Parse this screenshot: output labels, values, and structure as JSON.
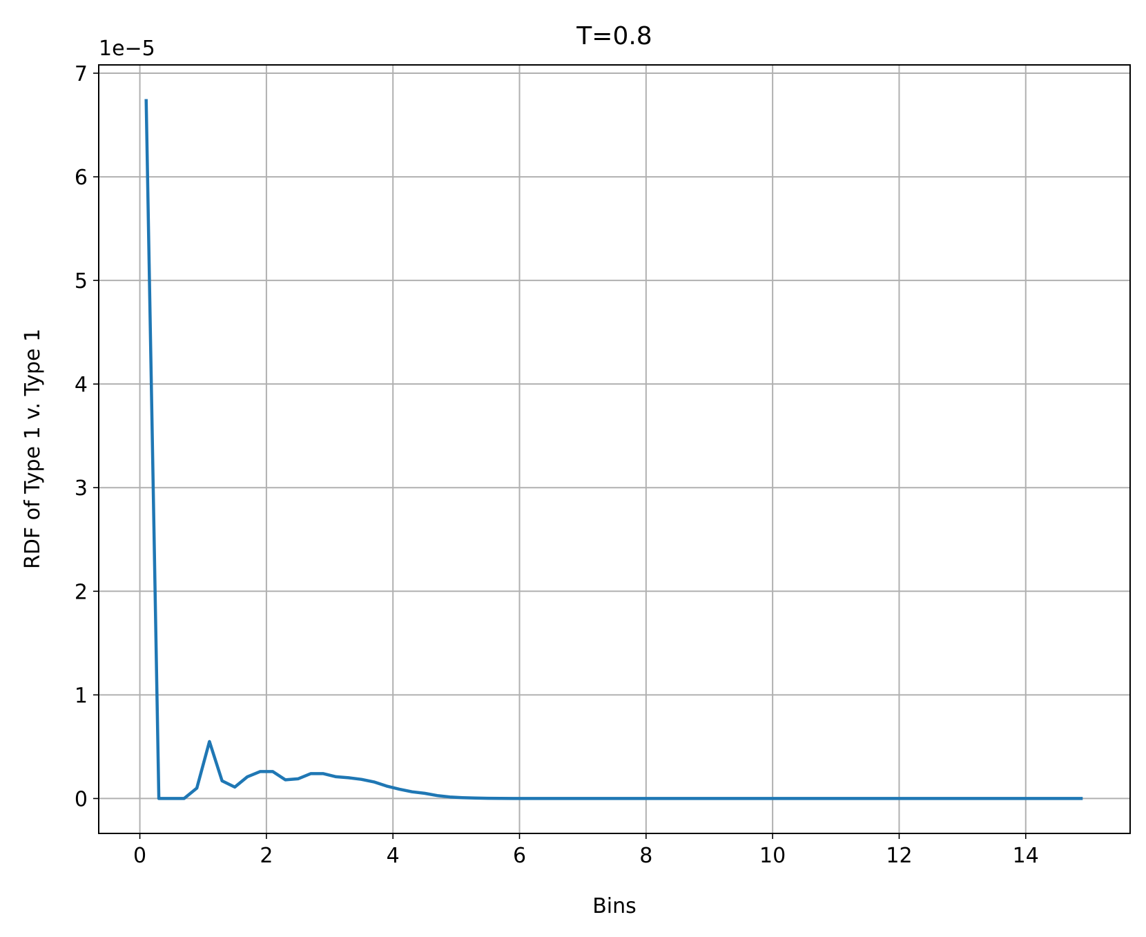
{
  "chart_data": {
    "type": "line",
    "title": "T=0.8",
    "xlabel": "Bins",
    "ylabel": "RDF of Type 1 v. Type 1",
    "y_offset_text": "1e−5",
    "xlim": [
      -0.65,
      15.65
    ],
    "ylim": [
      -0.337,
      7.08
    ],
    "xticks": [
      0,
      2,
      4,
      6,
      8,
      10,
      12,
      14
    ],
    "xtick_labels": [
      "0",
      "2",
      "4",
      "6",
      "8",
      "10",
      "12",
      "14"
    ],
    "yticks": [
      0,
      1,
      2,
      3,
      4,
      5,
      6,
      7
    ],
    "ytick_labels": [
      "0",
      "1",
      "2",
      "3",
      "4",
      "5",
      "6",
      "7"
    ],
    "grid": true,
    "series": [
      {
        "color": "#1f77b4",
        "x": [
          0.1,
          0.3,
          0.5,
          0.7,
          0.9,
          1.1,
          1.3,
          1.5,
          1.7,
          1.9,
          2.1,
          2.3,
          2.5,
          2.7,
          2.9,
          3.1,
          3.3,
          3.5,
          3.7,
          3.9,
          4.1,
          4.3,
          4.5,
          4.7,
          4.9,
          5.1,
          5.3,
          5.5,
          5.7,
          5.9,
          6.1,
          7.0,
          8.0,
          9.0,
          10.0,
          11.0,
          12.0,
          13.0,
          14.0,
          14.9
        ],
        "y": [
          6.75,
          0.0,
          0.0,
          0.0,
          0.1,
          0.55,
          0.17,
          0.11,
          0.21,
          0.26,
          0.26,
          0.18,
          0.19,
          0.24,
          0.24,
          0.21,
          0.2,
          0.185,
          0.16,
          0.12,
          0.09,
          0.065,
          0.05,
          0.028,
          0.015,
          0.008,
          0.004,
          0.002,
          0.001,
          0.0005,
          0.0,
          0.0,
          0.0,
          0.0,
          0.0,
          0.0,
          0.0,
          0.0,
          0.0,
          0.0
        ]
      }
    ]
  }
}
